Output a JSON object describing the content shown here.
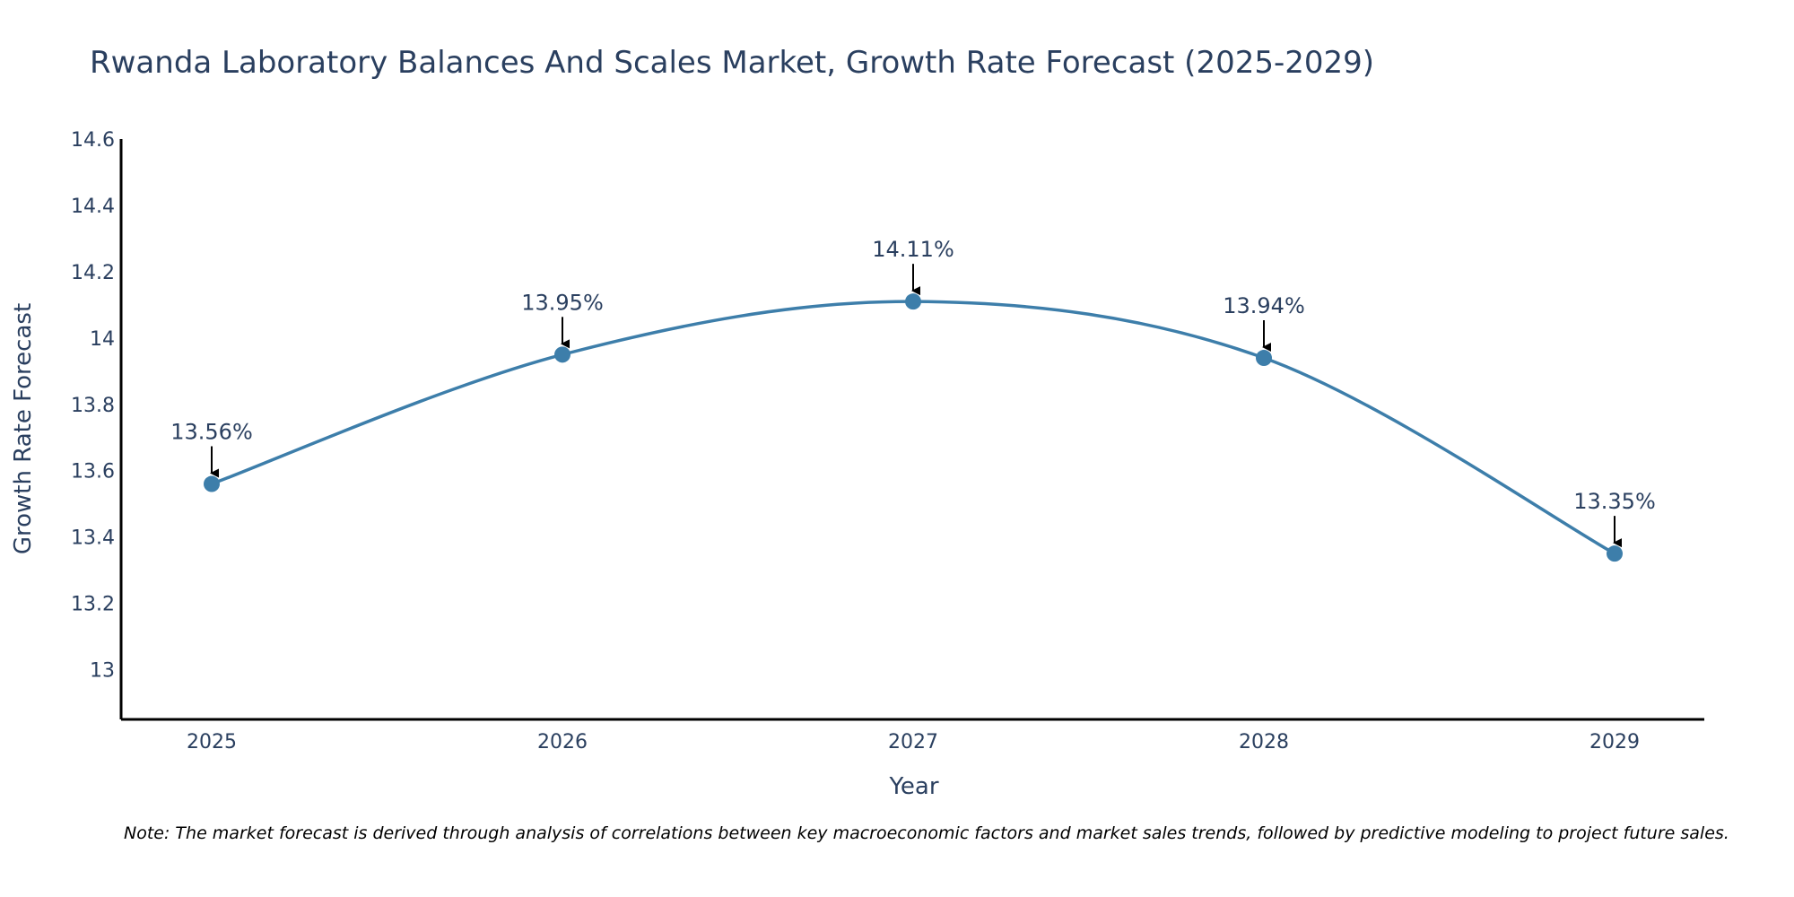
{
  "colors": {
    "line": "#3d7eaa",
    "marker": "#3d7eaa",
    "axis": "#000000",
    "text": "#2a3f5f",
    "arrow": "#000000"
  },
  "note": "Note: The market forecast is derived through analysis of correlations between key macroeconomic factors and market sales trends, followed by predictive modeling to project future sales.",
  "chart_data": {
    "type": "line",
    "title": "Rwanda Laboratory Balances And Scales Market, Growth Rate Forecast (2025-2029)",
    "xlabel": "Year",
    "ylabel": "Growth Rate Forecast",
    "categories": [
      "2025",
      "2026",
      "2027",
      "2028",
      "2029"
    ],
    "values": [
      13.56,
      13.95,
      14.11,
      13.94,
      13.35
    ],
    "data_labels": [
      "13.56%",
      "13.95%",
      "14.11%",
      "13.94%",
      "13.35%"
    ],
    "yticks": [
      13,
      13.2,
      13.4,
      13.6,
      13.8,
      14,
      14.2,
      14.4,
      14.6
    ],
    "ytick_labels": [
      "13",
      "13.2",
      "13.4",
      "13.6",
      "13.8",
      "14",
      "14.2",
      "14.4",
      "14.6"
    ],
    "ylim": [
      12.85,
      14.6
    ],
    "grid": false,
    "smooth": true
  }
}
